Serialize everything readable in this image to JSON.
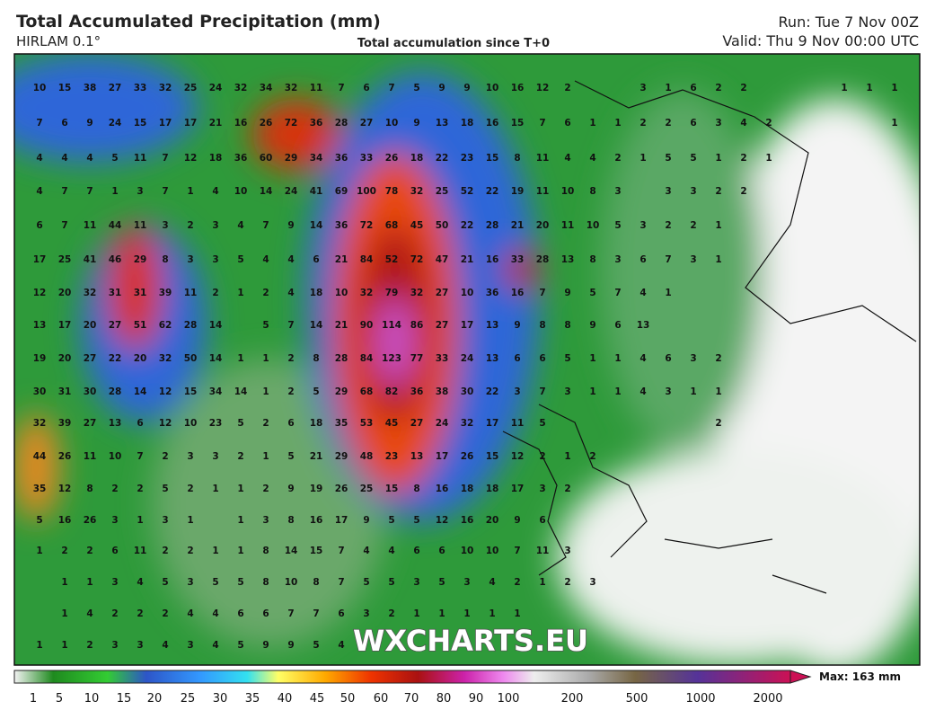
{
  "header": {
    "title": "Total Accumulated Precipitation (mm)",
    "model": "HIRLAM 0.1°",
    "subtitle": "Total accumulation since T+0",
    "run": "Run: Tue 7 Nov 00Z",
    "valid": "Valid: Thu 9 Nov 00:00 UTC"
  },
  "watermark": "WXCHARTS.EU",
  "grid_values": [
    [
      10,
      15,
      38,
      27,
      33,
      32,
      25,
      24,
      32,
      34,
      32,
      11,
      7,
      6,
      7,
      5,
      9,
      9,
      10,
      16,
      12,
      2,
      null,
      null,
      3,
      1,
      6,
      2,
      2,
      null,
      null,
      null,
      1,
      1,
      1
    ],
    [
      7,
      6,
      9,
      24,
      15,
      17,
      17,
      21,
      16,
      26,
      72,
      36,
      28,
      27,
      10,
      9,
      13,
      18,
      16,
      15,
      7,
      6,
      1,
      1,
      2,
      2,
      6,
      3,
      4,
      2,
      null,
      null,
      null,
      null,
      1
    ],
    [
      4,
      4,
      4,
      5,
      11,
      7,
      12,
      18,
      36,
      60,
      29,
      34,
      36,
      33,
      26,
      18,
      22,
      23,
      15,
      8,
      11,
      4,
      4,
      2,
      1,
      5,
      5,
      1,
      2,
      1
    ],
    [
      4,
      7,
      7,
      1,
      3,
      7,
      1,
      4,
      10,
      14,
      24,
      41,
      69,
      100,
      78,
      32,
      25,
      52,
      22,
      19,
      11,
      10,
      8,
      3,
      null,
      3,
      3,
      2,
      2
    ],
    [
      6,
      7,
      11,
      44,
      11,
      3,
      2,
      3,
      4,
      7,
      9,
      14,
      36,
      72,
      68,
      45,
      50,
      22,
      28,
      21,
      20,
      11,
      10,
      5,
      3,
      2,
      2,
      1
    ],
    [
      17,
      25,
      41,
      46,
      29,
      8,
      3,
      3,
      5,
      4,
      4,
      6,
      21,
      84,
      52,
      72,
      47,
      21,
      16,
      33,
      28,
      13,
      8,
      3,
      6,
      7,
      3,
      1
    ],
    [
      12,
      20,
      32,
      31,
      31,
      39,
      11,
      2,
      1,
      2,
      4,
      18,
      10,
      32,
      79,
      32,
      27,
      10,
      36,
      16,
      7,
      9,
      5,
      7,
      4,
      1
    ],
    [
      13,
      17,
      20,
      27,
      51,
      62,
      28,
      14,
      null,
      5,
      7,
      14,
      21,
      90,
      114,
      86,
      27,
      17,
      13,
      9,
      8,
      8,
      9,
      6,
      13
    ],
    [
      19,
      20,
      27,
      22,
      20,
      32,
      50,
      14,
      1,
      1,
      2,
      8,
      28,
      84,
      123,
      77,
      33,
      24,
      13,
      6,
      6,
      5,
      1,
      1,
      4,
      6,
      3,
      2
    ],
    [
      30,
      31,
      30,
      28,
      14,
      12,
      15,
      34,
      14,
      1,
      2,
      5,
      29,
      68,
      82,
      36,
      38,
      30,
      22,
      3,
      7,
      3,
      1,
      1,
      4,
      3,
      1,
      1
    ],
    [
      32,
      39,
      27,
      13,
      6,
      12,
      10,
      23,
      5,
      2,
      6,
      18,
      35,
      53,
      45,
      27,
      24,
      32,
      17,
      11,
      5,
      null,
      null,
      null,
      null,
      null,
      null,
      2
    ],
    [
      44,
      26,
      11,
      10,
      7,
      2,
      3,
      3,
      2,
      1,
      5,
      21,
      29,
      48,
      23,
      13,
      17,
      26,
      15,
      12,
      2,
      1,
      2
    ],
    [
      35,
      12,
      8,
      2,
      2,
      5,
      2,
      1,
      1,
      2,
      9,
      19,
      26,
      25,
      15,
      8,
      16,
      18,
      18,
      17,
      3,
      2
    ],
    [
      5,
      16,
      26,
      3,
      1,
      3,
      1,
      null,
      1,
      3,
      8,
      16,
      17,
      9,
      5,
      5,
      12,
      16,
      20,
      9,
      6
    ],
    [
      1,
      2,
      2,
      6,
      11,
      2,
      2,
      1,
      1,
      8,
      14,
      15,
      7,
      4,
      4,
      6,
      6,
      10,
      10,
      7,
      11,
      3
    ],
    [
      null,
      1,
      1,
      3,
      4,
      5,
      3,
      5,
      5,
      8,
      10,
      8,
      7,
      5,
      5,
      3,
      5,
      3,
      4,
      2,
      1,
      2,
      3
    ],
    [
      null,
      1,
      4,
      2,
      2,
      2,
      4,
      4,
      6,
      6,
      7,
      7,
      6,
      3,
      2,
      1,
      1,
      1,
      1,
      1
    ],
    [
      1,
      1,
      2,
      3,
      3,
      4,
      3,
      4,
      5,
      9,
      9,
      5,
      4
    ]
  ],
  "legend": {
    "ticks": [
      1,
      5,
      10,
      15,
      20,
      25,
      30,
      35,
      40,
      45,
      50,
      60,
      70,
      80,
      90,
      100,
      200,
      500,
      1000,
      2000
    ],
    "max_label": "Max: 163 mm"
  }
}
